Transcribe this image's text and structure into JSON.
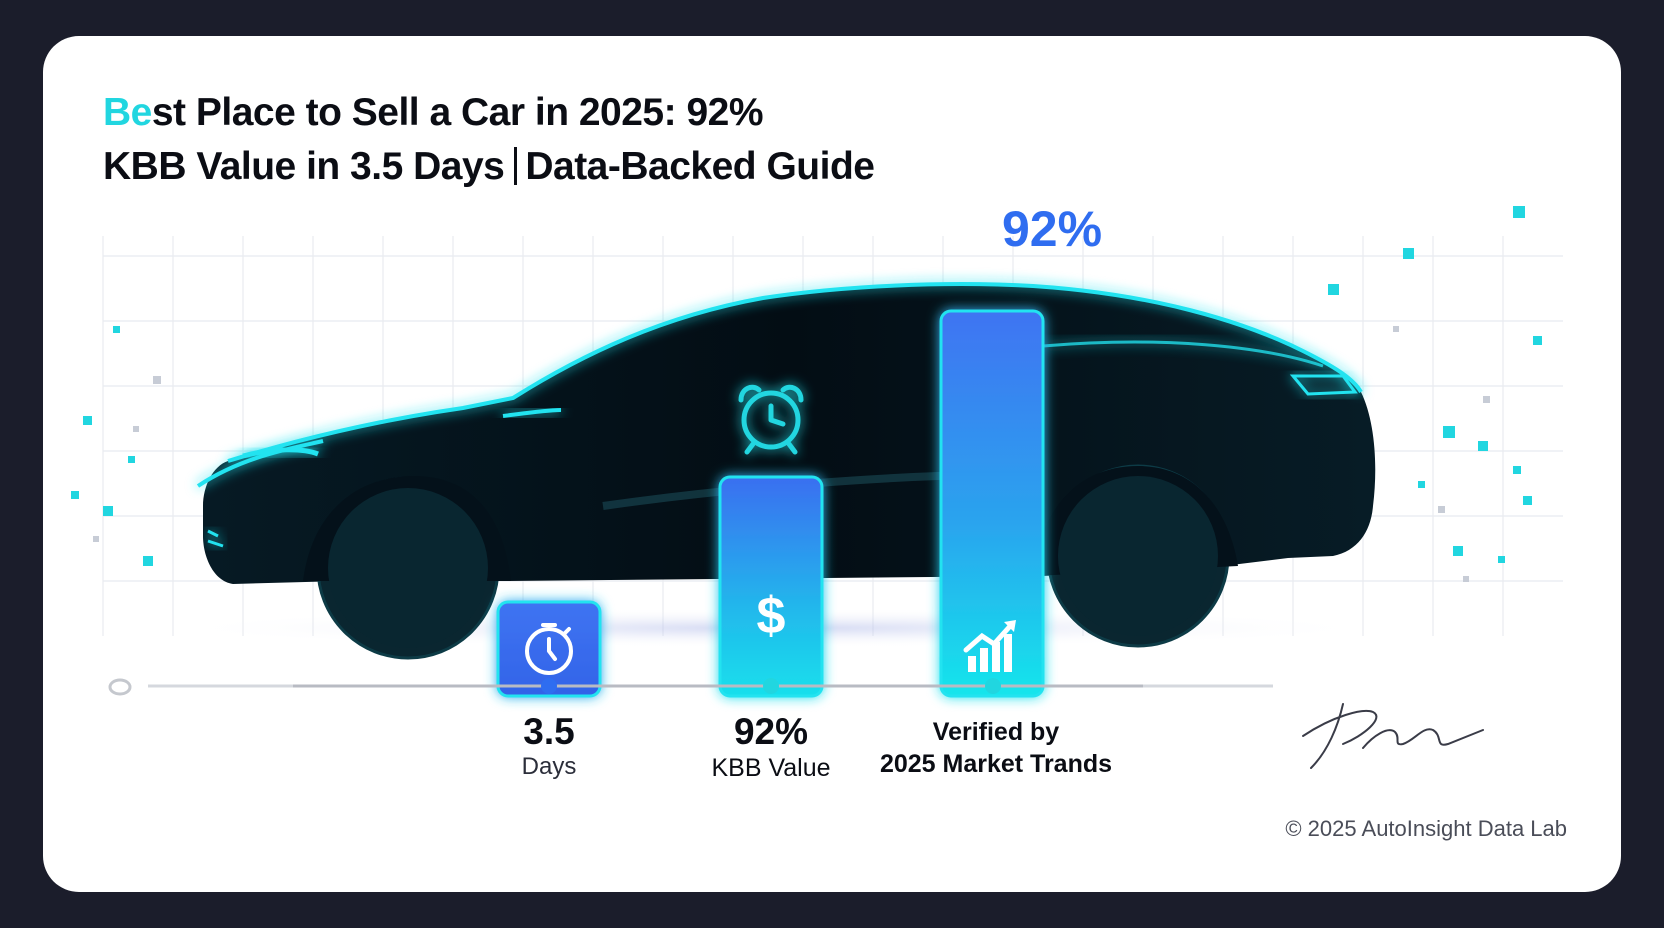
{
  "title": {
    "accent": "Be",
    "line1_rest": "st Place to Sell a Car in 2025: 92%",
    "line2_left": "KBB Value in 3.5 Days",
    "line2_right": "Data-Backed Guide"
  },
  "top_value": "92%",
  "stats": [
    {
      "value": "3.5",
      "label": "Days"
    },
    {
      "value": "92%",
      "label": "KBB Value"
    },
    {
      "label_line1": "Verified by",
      "label_line2": "2025 Market Trands"
    }
  ],
  "icons": {
    "bar1": "stopwatch-icon",
    "bar2": "dollar-sign-icon",
    "bar3": "growth-chart-icon",
    "above_bar2": "alarm-clock-icon"
  },
  "dollar_glyph": "$",
  "signature": "Pilra",
  "copyright": "© 2025 AutoInsight Data Lab",
  "colors": {
    "background": "#1b1d2b",
    "card": "#ffffff",
    "accent_cyan": "#21d6e0",
    "accent_blue": "#2f6df0",
    "car": "#05121a"
  }
}
